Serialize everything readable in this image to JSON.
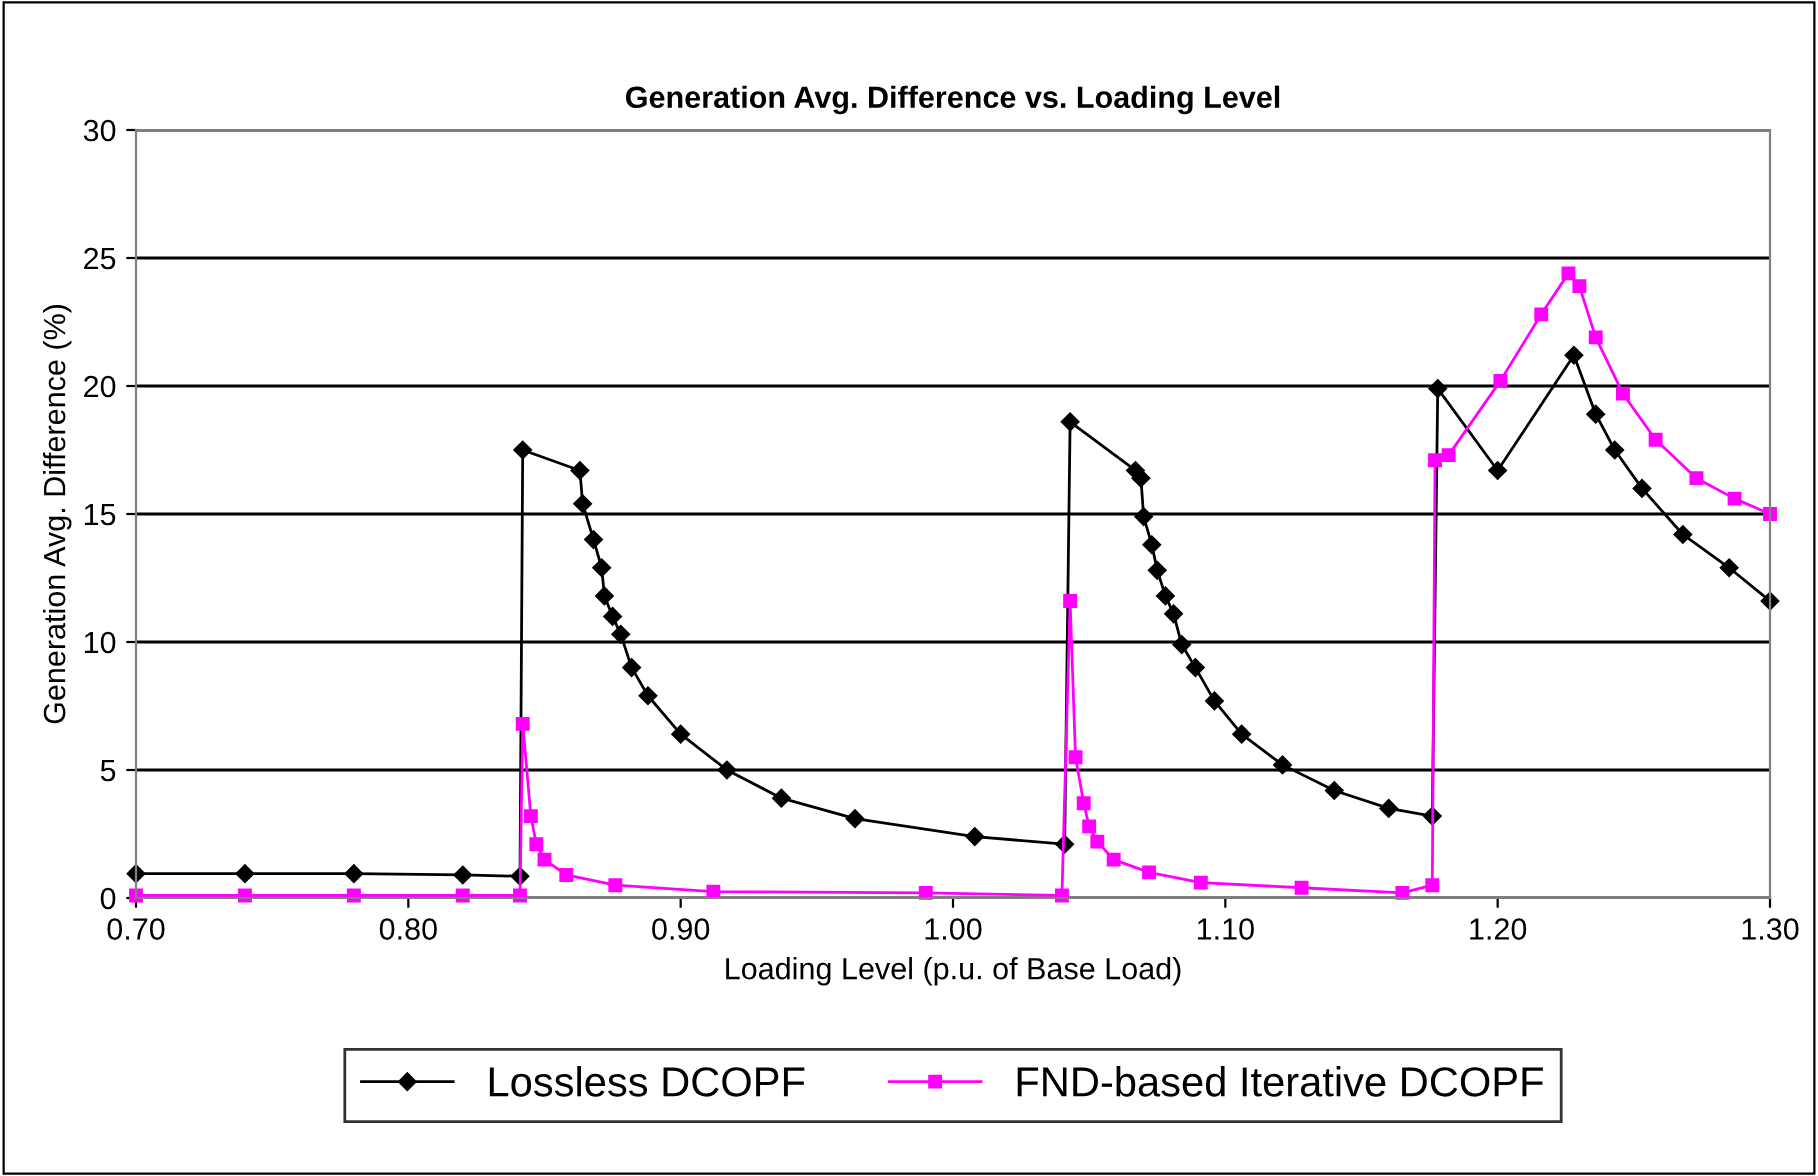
{
  "chart_data": {
    "type": "line",
    "title": "Generation Avg. Difference vs. Loading Level",
    "xlabel": "Loading Level (p.u. of Base Load)",
    "ylabel": "Generation Avg. Difference (%)",
    "xlim": [
      0.7,
      1.3
    ],
    "xticks": [
      {
        "value": 0.7,
        "label": "0.70"
      },
      {
        "value": 0.8,
        "label": "0.80"
      },
      {
        "value": 0.9,
        "label": "0.90"
      },
      {
        "value": 1.0,
        "label": "1.00"
      },
      {
        "value": 1.1,
        "label": "1.10"
      },
      {
        "value": 1.2,
        "label": "1.20"
      },
      {
        "value": 1.3,
        "label": "1.30"
      }
    ],
    "ylim": [
      0,
      30
    ],
    "yticks": [
      0,
      5,
      10,
      15,
      20,
      25,
      30
    ],
    "grid": "y",
    "legend": "bottom",
    "series": [
      {
        "name": "Lossless DCOPF",
        "color": "#000000",
        "marker": "diamond",
        "x": [
          0.7,
          0.74,
          0.78,
          0.82,
          0.841,
          0.842,
          0.863,
          0.864,
          0.868,
          0.871,
          0.872,
          0.875,
          0.878,
          0.882,
          0.888,
          0.9,
          0.917,
          0.937,
          0.964,
          1.008,
          1.041,
          1.043,
          1.067,
          1.069,
          1.07,
          1.073,
          1.075,
          1.078,
          1.081,
          1.084,
          1.089,
          1.096,
          1.106,
          1.121,
          1.14,
          1.16,
          1.176,
          1.178,
          1.2,
          1.228,
          1.236,
          1.243,
          1.253,
          1.268,
          1.285,
          1.3
        ],
        "values": [
          0.95,
          0.95,
          0.95,
          0.9,
          0.85,
          17.5,
          16.7,
          15.4,
          14.0,
          12.9,
          11.8,
          11.0,
          10.3,
          9.0,
          7.9,
          6.4,
          5.0,
          3.9,
          3.1,
          2.4,
          2.1,
          18.6,
          16.7,
          16.4,
          14.9,
          13.8,
          12.8,
          11.8,
          11.1,
          9.9,
          9.0,
          7.7,
          6.4,
          5.2,
          4.2,
          3.5,
          3.2,
          19.9,
          16.7,
          21.2,
          18.9,
          17.5,
          16.0,
          14.2,
          12.9,
          11.6
        ]
      },
      {
        "name": "FND-based Iterative DCOPF",
        "color": "#ff00ff",
        "marker": "square",
        "x": [
          0.7,
          0.74,
          0.78,
          0.82,
          0.841,
          0.842,
          0.845,
          0.847,
          0.85,
          0.858,
          0.876,
          0.912,
          0.99,
          1.04,
          1.043,
          1.045,
          1.048,
          1.05,
          1.053,
          1.059,
          1.072,
          1.091,
          1.128,
          1.165,
          1.176,
          1.177,
          1.182,
          1.201,
          1.216,
          1.226,
          1.23,
          1.236,
          1.246,
          1.258,
          1.273,
          1.287,
          1.3
        ],
        "values": [
          0.1,
          0.1,
          0.1,
          0.1,
          0.1,
          6.8,
          3.2,
          2.1,
          1.5,
          0.9,
          0.5,
          0.25,
          0.2,
          0.1,
          11.6,
          5.5,
          3.7,
          2.8,
          2.2,
          1.5,
          1.0,
          0.6,
          0.4,
          0.2,
          0.5,
          17.1,
          17.3,
          20.2,
          22.8,
          24.4,
          23.9,
          21.9,
          19.7,
          17.9,
          16.4,
          15.6,
          15.0
        ]
      }
    ]
  }
}
